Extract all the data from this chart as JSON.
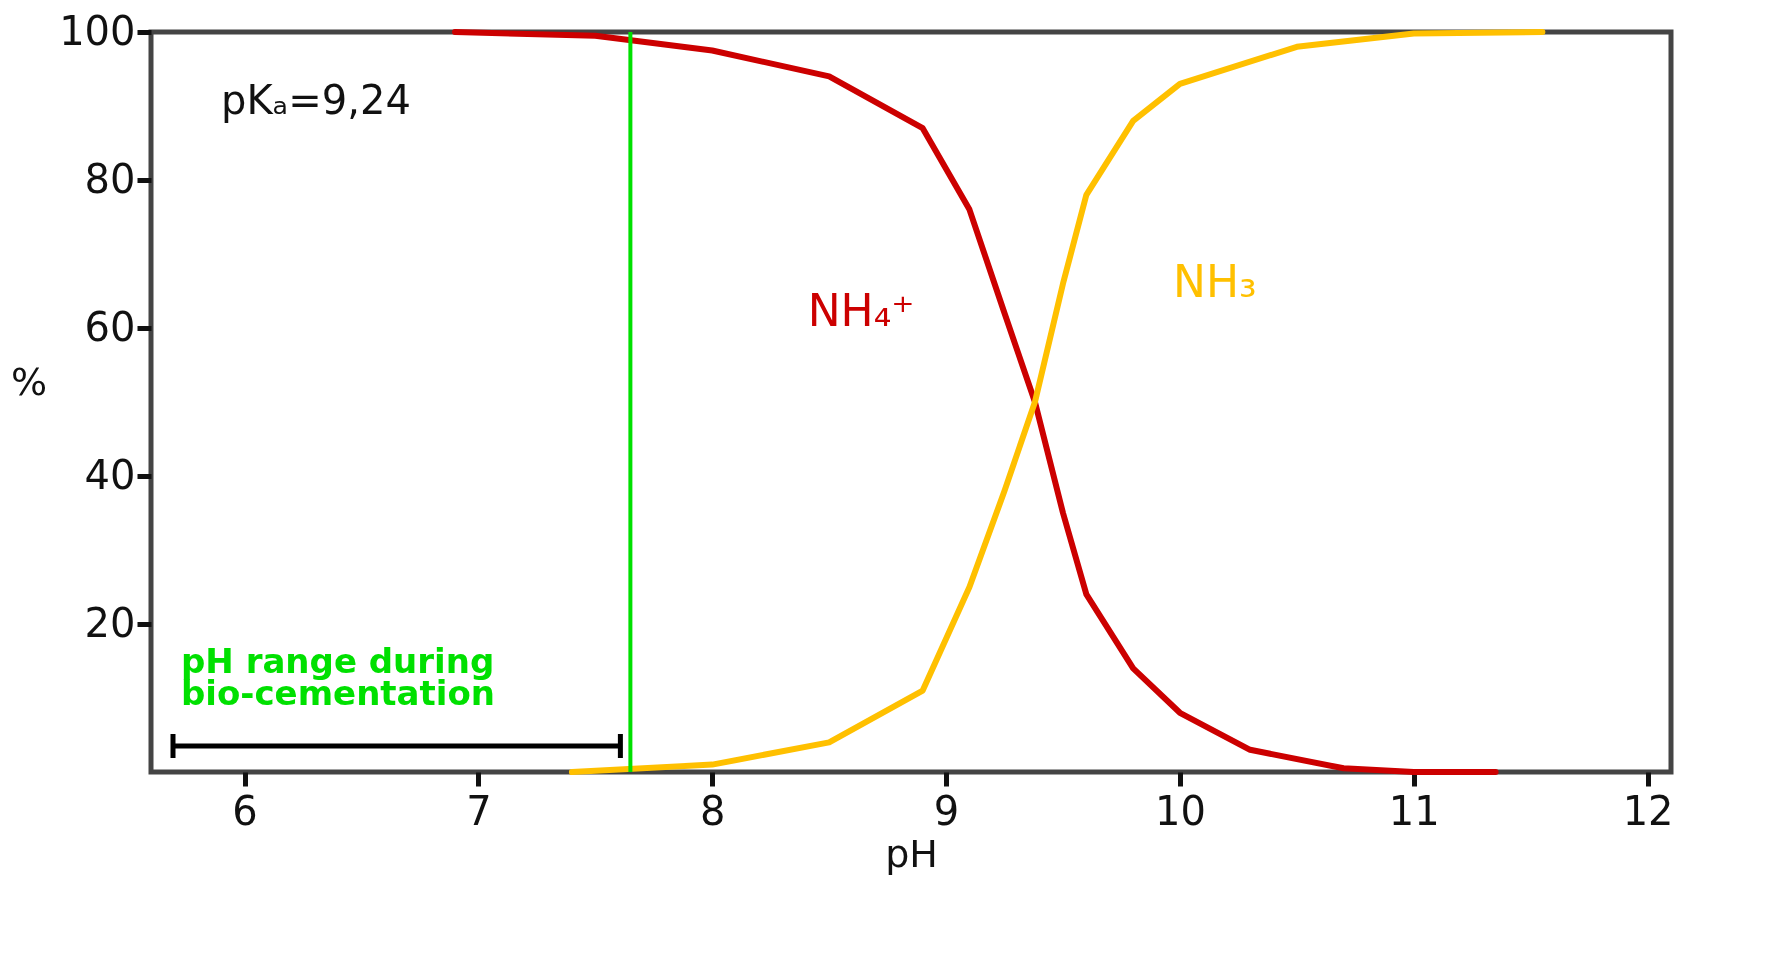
{
  "chart_data": {
    "type": "line",
    "xlabel": "pH",
    "ylabel": "%",
    "xlim": [
      5.6,
      12.1
    ],
    "ylim": [
      0,
      100
    ],
    "xticks": [
      6,
      7,
      8,
      9,
      10,
      11,
      12
    ],
    "yticks": [
      20,
      40,
      60,
      80,
      100
    ],
    "x": [
      6.9,
      7.5,
      8,
      8.5,
      8.9,
      9.1,
      9.25,
      9.38,
      9.5,
      9.6,
      9.8,
      10,
      10.3,
      10.7,
      11,
      11.35
    ],
    "series": [
      {
        "name": "NH₄⁺",
        "color": "#cc0000",
        "values": [
          100,
          99.5,
          97.5,
          94,
          87,
          76,
          62,
          50,
          35,
          24,
          14,
          8,
          3,
          0.5,
          0,
          0
        ]
      },
      {
        "name": "NH₃",
        "color": "#ffc000",
        "x": [
          7.4,
          8,
          8.5,
          8.9,
          9.1,
          9.25,
          9.38,
          9.5,
          9.6,
          9.8,
          10,
          10.5,
          11,
          11.55
        ],
        "values": [
          0,
          1,
          4,
          11,
          25,
          38,
          50,
          66,
          78,
          88,
          93,
          98,
          99.8,
          100
        ]
      }
    ],
    "ref_lines": [
      {
        "axis": "x",
        "value": 7.65,
        "color": "#00e000",
        "label": "pH range during bio-cementation"
      }
    ],
    "annotations": [
      "pKₐ=9,24"
    ]
  }
}
